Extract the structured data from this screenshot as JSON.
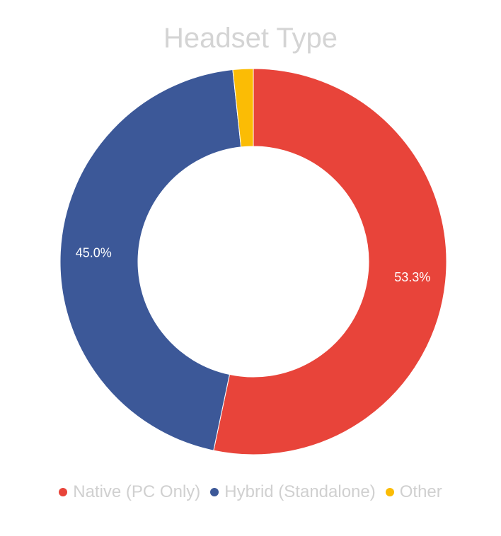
{
  "chart_data": {
    "type": "pie",
    "variant": "donut",
    "title": "Headset Type",
    "slices": [
      {
        "name": "Native (PC Only)",
        "value": 53.3,
        "label": "53.3%",
        "color": "#e8443a"
      },
      {
        "name": "Hybrid (Standalone)",
        "value": 45.0,
        "label": "45.0%",
        "color": "#3c5898"
      },
      {
        "name": "Other",
        "value": 1.7,
        "label": "",
        "color": "#fbbc05"
      }
    ],
    "legend_position": "bottom"
  }
}
